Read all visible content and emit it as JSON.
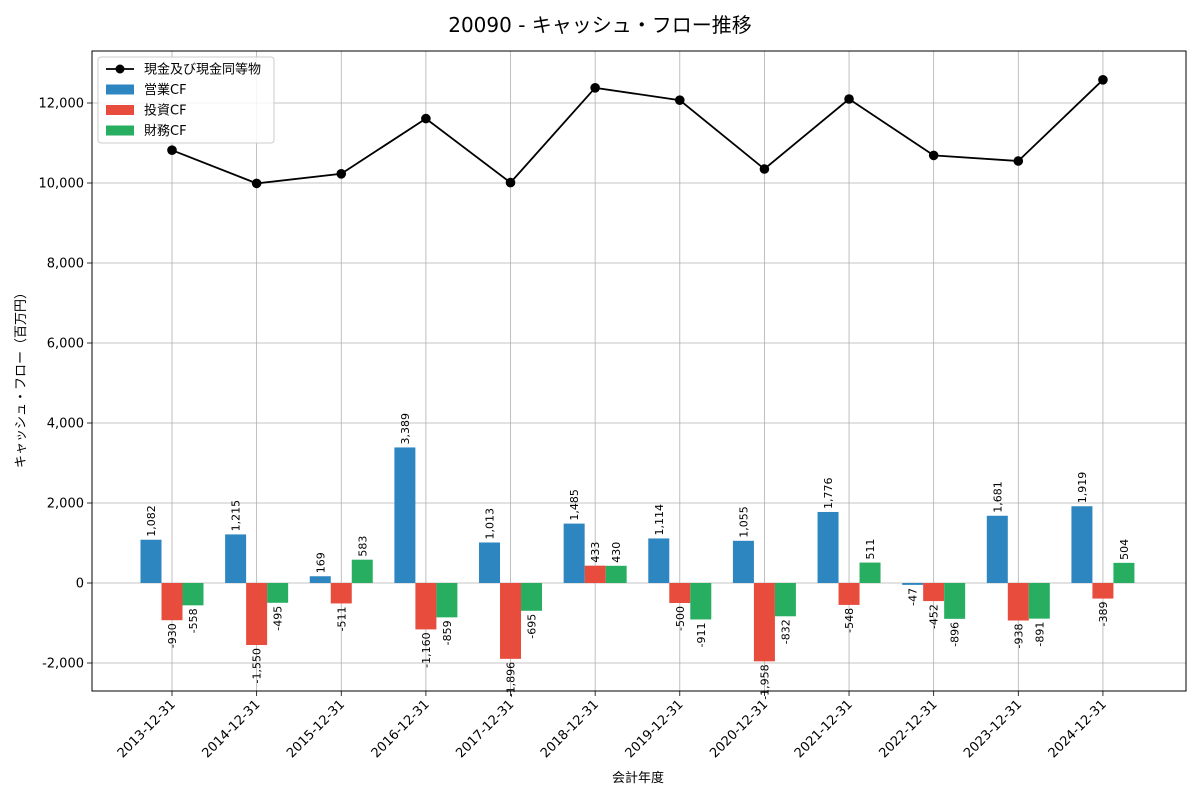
{
  "chart_data": {
    "type": "bar",
    "title": "20090 - キャッシュ・フロー推移",
    "xlabel": "会計年度",
    "ylabel": "キャッシュ・フロー（百万円）",
    "ylim": [
      -2700,
      13300
    ],
    "yticks": [
      -2000,
      0,
      2000,
      4000,
      6000,
      8000,
      10000,
      12000
    ],
    "ytick_labels": [
      "-2,000",
      "0",
      "2,000",
      "4,000",
      "6,000",
      "8,000",
      "10,000",
      "12,000"
    ],
    "grid": true,
    "legend_position": "top-left",
    "categories": [
      "2013-12-31",
      "2014-12-31",
      "2015-12-31",
      "2016-12-31",
      "2017-12-31",
      "2018-12-31",
      "2019-12-31",
      "2020-12-31",
      "2021-12-31",
      "2022-12-31",
      "2023-12-31",
      "2024-12-31"
    ],
    "series": [
      {
        "name": "営業CF",
        "kind": "bar",
        "color": "#2e86c1",
        "values": [
          1082,
          1215,
          169,
          3389,
          1013,
          1485,
          1114,
          1055,
          1776,
          -47,
          1681,
          1919
        ],
        "labels": [
          "1,082",
          "1,215",
          "169",
          "3,389",
          "1,013",
          "1,485",
          "1,114",
          "1,055",
          "1,776",
          "-47",
          "1,681",
          "1,919"
        ]
      },
      {
        "name": "投資CF",
        "kind": "bar",
        "color": "#e74c3c",
        "values": [
          -930,
          -1550,
          -511,
          -1160,
          -1896,
          433,
          -500,
          -1958,
          -548,
          -452,
          -938,
          -389
        ],
        "labels": [
          "-930",
          "-1,550",
          "-511",
          "-1,160",
          "-1,896",
          "433",
          "-500",
          "-1,958",
          "-548",
          "-452",
          "-938",
          "-389"
        ]
      },
      {
        "name": "財務CF",
        "kind": "bar",
        "color": "#27ae60",
        "values": [
          -558,
          -495,
          583,
          -859,
          -695,
          430,
          -911,
          -832,
          511,
          -896,
          -891,
          504
        ],
        "labels": [
          "-558",
          "-495",
          "583",
          "-859",
          "-695",
          "430",
          "-911",
          "-832",
          "511",
          "-896",
          "-891",
          "504"
        ]
      },
      {
        "name": "現金及び現金同等物",
        "kind": "line",
        "color": "#000000",
        "values": [
          10820,
          9990,
          10230,
          11610,
          10010,
          12380,
          12070,
          10350,
          12100,
          10690,
          10550,
          12580
        ]
      }
    ]
  }
}
